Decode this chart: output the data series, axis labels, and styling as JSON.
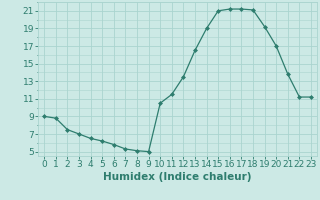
{
  "x": [
    0,
    1,
    2,
    3,
    4,
    5,
    6,
    7,
    8,
    9,
    10,
    11,
    12,
    13,
    14,
    15,
    16,
    17,
    18,
    19,
    20,
    21,
    22,
    23
  ],
  "y": [
    9,
    8.8,
    7.5,
    7,
    6.5,
    6.2,
    5.8,
    5.3,
    5.1,
    5.0,
    10.5,
    11.5,
    13.5,
    16.5,
    19,
    21.0,
    21.2,
    21.2,
    21.1,
    19.2,
    17.0,
    13.8,
    11.2,
    11.2
  ],
  "line_color": "#2e7d6e",
  "marker": "D",
  "marker_size": 2.0,
  "bg_color": "#cce9e5",
  "grid_color": "#aad4cf",
  "tick_color": "#2e7d6e",
  "xlabel": "Humidex (Indice chaleur)",
  "ylim": [
    4.5,
    22
  ],
  "xlim": [
    -0.5,
    23.5
  ],
  "yticks": [
    5,
    7,
    9,
    11,
    13,
    15,
    17,
    19,
    21
  ],
  "xticks": [
    0,
    1,
    2,
    3,
    4,
    5,
    6,
    7,
    8,
    9,
    10,
    11,
    12,
    13,
    14,
    15,
    16,
    17,
    18,
    19,
    20,
    21,
    22,
    23
  ],
  "tick_fontsize": 6.5,
  "xlabel_fontsize": 7.5
}
